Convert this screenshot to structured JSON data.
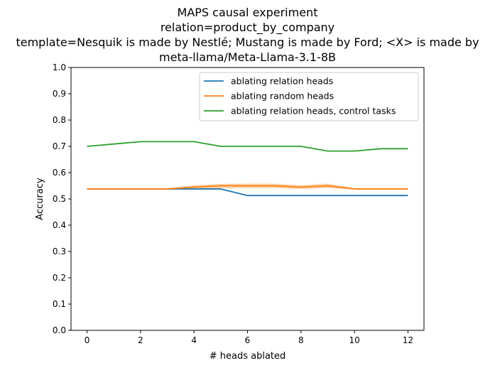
{
  "chart_data": {
    "type": "line",
    "title_lines": [
      "MAPS causal experiment",
      "relation=product_by_company",
      "template=Nesquik is made by Nestlé; Mustang is made by Ford; <X> is made by",
      "meta-llama/Meta-Llama-3.1-8B"
    ],
    "xlabel": "# heads ablated",
    "ylabel": "Accuracy",
    "xlim": [
      -0.6,
      12.6
    ],
    "ylim": [
      0.0,
      1.0
    ],
    "xticks": [
      0,
      2,
      4,
      6,
      8,
      10,
      12
    ],
    "yticks": [
      0.0,
      0.1,
      0.2,
      0.3,
      0.4,
      0.5,
      0.6,
      0.7,
      0.8,
      0.9,
      1.0
    ],
    "ytick_labels": [
      "0.0",
      "0.1",
      "0.2",
      "0.3",
      "0.4",
      "0.5",
      "0.6",
      "0.7",
      "0.8",
      "0.9",
      "1.0"
    ],
    "grid": false,
    "legend_position": "top-right",
    "x": [
      0,
      1,
      2,
      3,
      4,
      5,
      6,
      7,
      8,
      9,
      10,
      11,
      12
    ],
    "series": [
      {
        "name": "ablating relation heads",
        "color": "#1f77b4",
        "values": [
          0.538,
          0.538,
          0.538,
          0.538,
          0.538,
          0.538,
          0.513,
          0.513,
          0.513,
          0.513,
          0.513,
          0.513,
          0.513
        ]
      },
      {
        "name": "ablating random heads",
        "color": "#ff7f0e",
        "values": [
          0.538,
          0.538,
          0.538,
          0.538,
          0.545,
          0.55,
          0.55,
          0.55,
          0.545,
          0.55,
          0.538,
          0.538,
          0.538
        ],
        "band_lower": [
          0.536,
          0.536,
          0.536,
          0.536,
          0.538,
          0.541,
          0.541,
          0.541,
          0.538,
          0.541,
          0.536,
          0.536,
          0.536
        ],
        "band_upper": [
          0.541,
          0.541,
          0.541,
          0.541,
          0.552,
          0.557,
          0.558,
          0.558,
          0.552,
          0.558,
          0.541,
          0.541,
          0.541
        ]
      },
      {
        "name": "ablating relation heads, control tasks",
        "color": "#2ca02c",
        "values": [
          0.7,
          0.709,
          0.718,
          0.718,
          0.718,
          0.7,
          0.7,
          0.7,
          0.7,
          0.682,
          0.682,
          0.691,
          0.691
        ]
      }
    ]
  }
}
